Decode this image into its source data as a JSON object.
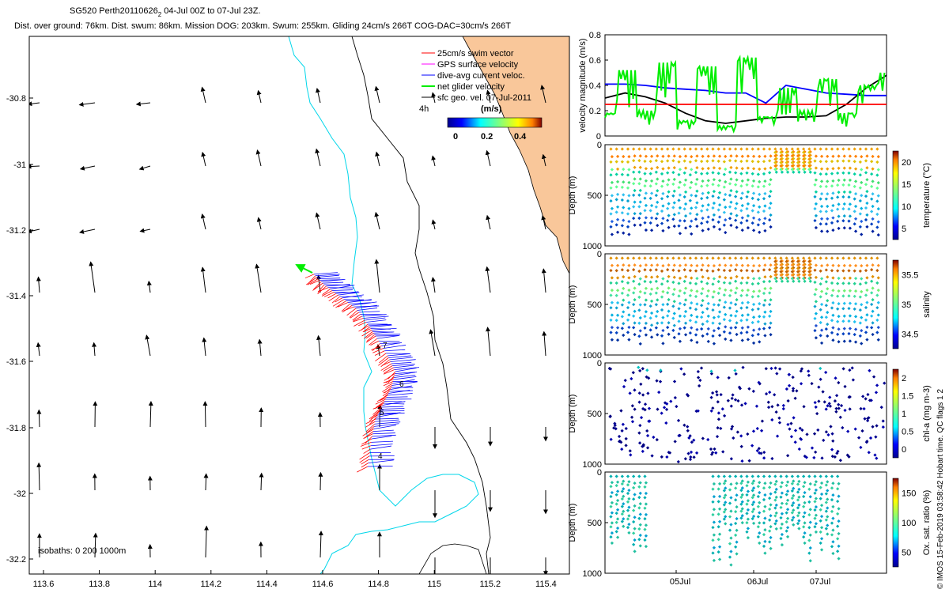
{
  "header": {
    "line1": "SG520 Perth20110626",
    "line1_sub": "2",
    "line1_rest": " 04-Jul 00Z to 07-Jul 23Z.",
    "line2": "Dist. over ground: 76km. Dist. swum: 86km. Mission DOG: 203km. Swum: 255km. Gliding 24cm/s 266T COG-DAC=30cm/s 266T"
  },
  "copyright": "© IMOS 15-Feb-2019 03:58:42 Hobart time. QC flags 1  2",
  "colors": {
    "land": "#f9c79a",
    "coast": "#000000",
    "isobath200": "#00d6ea",
    "swim": "#ff0000",
    "gps": "#ff00ff",
    "dac": "#0000ff",
    "net": "#00ee00",
    "geo": "#000000",
    "red_ref": "#ff0000"
  },
  "map": {
    "legend": [
      {
        "label": "25cm/s swim vector",
        "color": "#ff0000"
      },
      {
        "label": "GPS surface velocity",
        "color": "#ff00ff"
      },
      {
        "label": "dive-avg current veloc.",
        "color": "#0000ff"
      },
      {
        "label": "net glider velocity",
        "color": "#00ee00"
      },
      {
        "label": "sfc geo. vel. 07-Jul-2011",
        "color": "#000000"
      }
    ],
    "colorbar": {
      "title": "(m/s)",
      "ticks": [
        "0",
        "0.2",
        "0.4"
      ],
      "tag": "4h"
    },
    "isobath_note": "isobaths: 0   200  1000m",
    "xticks": [
      "113.6",
      "113.8",
      "114",
      "114.2",
      "114.4",
      "114.6",
      "114.8",
      "115",
      "115.2",
      "115.4"
    ],
    "yticks": [
      "-30.8",
      "-31",
      "-31.2",
      "-31.4",
      "-31.6",
      "-31.8",
      "-32",
      "-32.2"
    ],
    "track_labels": [
      "4",
      "5",
      "6",
      "7"
    ]
  },
  "chart_data": [
    {
      "type": "line",
      "title": "",
      "ylabel": "velocity magnitude (m/s)",
      "ylim": [
        0,
        0.8
      ],
      "yticks": [
        "0",
        "0.2",
        "0.4",
        "0.6",
        "0.8"
      ],
      "x_days": [
        0,
        0.25,
        0.5,
        0.75,
        1,
        1.25,
        1.5,
        1.75,
        2,
        2.25,
        2.5,
        2.75,
        3,
        3.25,
        3.5
      ],
      "series": [
        {
          "name": "dive-avg current veloc.",
          "color": "#0000ff",
          "values": [
            0.41,
            0.41,
            0.4,
            0.38,
            0.37,
            0.36,
            0.34,
            0.34,
            0.26,
            0.4,
            0.37,
            0.34,
            0.33,
            0.32,
            0.32
          ]
        },
        {
          "name": "sfc geo. vel.",
          "color": "#000000",
          "values": [
            0.3,
            0.34,
            0.31,
            0.26,
            0.18,
            0.12,
            0.1,
            0.12,
            0.14,
            0.15,
            0.15,
            0.16,
            0.25,
            0.38,
            0.48
          ]
        },
        {
          "name": "net glider velocity",
          "color": "#00ee00",
          "values": [
            0.18,
            0.52,
            0.2,
            0.58,
            0.12,
            0.55,
            0.08,
            0.62,
            0.15,
            0.38,
            0.2,
            0.45,
            0.18,
            0.4,
            0.5
          ]
        },
        {
          "name": "reference",
          "color": "#ff0000",
          "values": [
            0.25,
            0.25
          ]
        }
      ]
    },
    {
      "type": "scatter",
      "ylabel": "Depth (m)",
      "cbar_label": "temperature (°C)",
      "cbar_ticks": [
        "5",
        "10",
        "15",
        "20"
      ],
      "yticks": [
        "0",
        "500",
        "1000"
      ]
    },
    {
      "type": "scatter",
      "ylabel": "Depth (m)",
      "cbar_label": "salinity",
      "cbar_ticks": [
        "34.5",
        "35",
        "35.5"
      ],
      "yticks": [
        "0",
        "500",
        "1000"
      ]
    },
    {
      "type": "scatter",
      "ylabel": "Depth (m)",
      "cbar_label": "chl-a (mg m-3)",
      "cbar_ticks": [
        "0",
        "0.5",
        "1",
        "1.5",
        "2"
      ],
      "yticks": [
        "0",
        "500",
        "1000"
      ]
    },
    {
      "type": "scatter",
      "ylabel": "Depth (m)",
      "cbar_label": "Ox. sat. ratio (%)",
      "cbar_ticks": [
        "50",
        "100",
        "150"
      ],
      "yticks": [
        "0",
        "500",
        "1000"
      ],
      "xticks": [
        "05Jul",
        "06Jul",
        "07Jul"
      ]
    }
  ]
}
